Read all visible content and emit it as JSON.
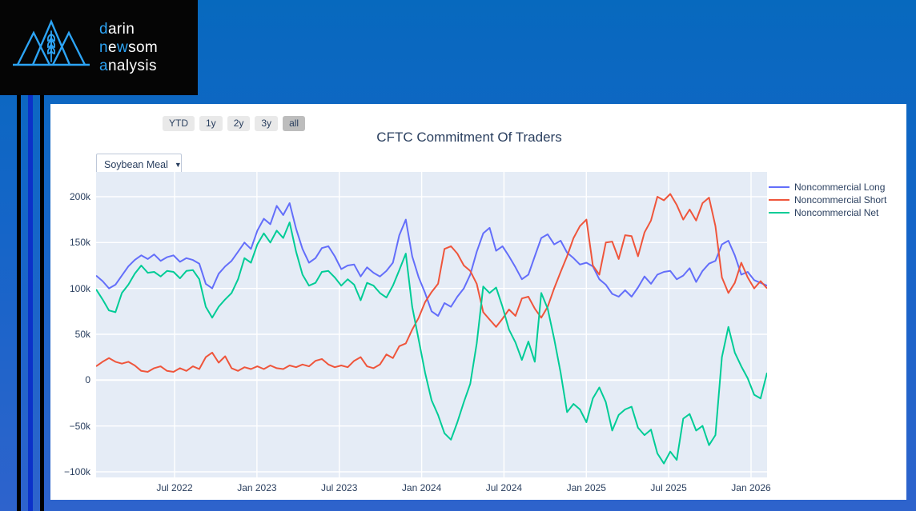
{
  "brand": {
    "accent_color": "#2CA4F5",
    "text_color": "#FFFFFF",
    "background": "#050505",
    "logo_icon": "mountains-wheat",
    "wordmark_lines": [
      {
        "segments": [
          {
            "text": "d",
            "accent": true
          },
          {
            "text": "arin",
            "accent": false
          }
        ]
      },
      {
        "segments": [
          {
            "text": "n",
            "accent": true
          },
          {
            "text": "e",
            "accent": false
          },
          {
            "text": "w",
            "accent": true
          },
          {
            "text": "som",
            "accent": false
          }
        ]
      },
      {
        "segments": [
          {
            "text": "a",
            "accent": true
          },
          {
            "text": "nalysis",
            "accent": false
          }
        ]
      }
    ]
  },
  "toolbar": {
    "range_buttons": [
      {
        "label": "YTD",
        "active": false
      },
      {
        "label": "1y",
        "active": false
      },
      {
        "label": "2y",
        "active": false
      },
      {
        "label": "3y",
        "active": false
      },
      {
        "label": "all",
        "active": true
      }
    ]
  },
  "chart": {
    "title": "CFTC Commitment Of Traders",
    "dropdown_value": "Soybean Meal",
    "dropdown_arrow": "▼"
  },
  "chart_data": {
    "type": "line",
    "title": "CFTC Commitment Of Traders",
    "commodity": "Soybean Meal",
    "x_start": "2022-01-15",
    "x_end": "2026-02-06",
    "x_interval": "biweekly",
    "x_ticks": [
      "Jul 2022",
      "Jan 2023",
      "Jul 2023",
      "Jan 2024",
      "Jul 2024",
      "Jan 2025",
      "Jul 2025",
      "Jan 2026"
    ],
    "y_ticks": [
      "200k",
      "150k",
      "100k",
      "50k",
      "0",
      "−50k",
      "−100k"
    ],
    "y_unit": "contracts, thousands",
    "ylim": [
      -106,
      226
    ],
    "grid": true,
    "plot_bg": "#E5ECF6",
    "grid_color": "#FFFFFF",
    "legend_position": "top-right-outside",
    "series": [
      {
        "name": "Noncommercial Long",
        "color": "#636EFA",
        "values": [
          114,
          108,
          100,
          104,
          114,
          124,
          131,
          136,
          132,
          137,
          130,
          134,
          136,
          129,
          133,
          131,
          127,
          105,
          100,
          116,
          124,
          130,
          140,
          150,
          143,
          163,
          176,
          170,
          190,
          180,
          193,
          165,
          143,
          128,
          133,
          144,
          146,
          135,
          121,
          125,
          126,
          113,
          123,
          117,
          113,
          119,
          128,
          158,
          175,
          135,
          112,
          95,
          75,
          70,
          84,
          80,
          91,
          100,
          115,
          140,
          160,
          166,
          141,
          146,
          135,
          123,
          110,
          115,
          135,
          155,
          159,
          148,
          152,
          139,
          133,
          126,
          128,
          124,
          110,
          104,
          94,
          91,
          98,
          91,
          101,
          113,
          105,
          115,
          118,
          119,
          110,
          114,
          122,
          107,
          119,
          127,
          130,
          148,
          152,
          136,
          115,
          118,
          109,
          106,
          103
        ]
      },
      {
        "name": "Noncommercial Short",
        "color": "#EF553B",
        "values": [
          15,
          20,
          24,
          20,
          18,
          20,
          16,
          10,
          9,
          13,
          15,
          10,
          9,
          13,
          10,
          15,
          12,
          25,
          30,
          19,
          26,
          13,
          10,
          14,
          12,
          15,
          12,
          16,
          13,
          12,
          16,
          14,
          17,
          15,
          21,
          23,
          17,
          14,
          16,
          14,
          21,
          25,
          15,
          13,
          17,
          28,
          24,
          37,
          40,
          55,
          68,
          85,
          96,
          105,
          143,
          146,
          138,
          125,
          119,
          105,
          74,
          66,
          58,
          67,
          77,
          70,
          89,
          91,
          78,
          68,
          80,
          100,
          118,
          135,
          155,
          168,
          175,
          125,
          115,
          150,
          151,
          132,
          158,
          157,
          135,
          161,
          174,
          200,
          196,
          203,
          191,
          175,
          186,
          174,
          193,
          199,
          168,
          112,
          95,
          106,
          128,
          112,
          100,
          108,
          100
        ]
      },
      {
        "name": "Noncommercial Net",
        "color": "#00CC96",
        "values": [
          99,
          88,
          76,
          74,
          95,
          104,
          116,
          125,
          117,
          118,
          113,
          119,
          118,
          111,
          119,
          120,
          110,
          80,
          68,
          80,
          88,
          95,
          110,
          133,
          128,
          148,
          160,
          150,
          163,
          155,
          172,
          140,
          115,
          103,
          106,
          118,
          119,
          112,
          103,
          110,
          104,
          87,
          106,
          103,
          95,
          90,
          103,
          120,
          138,
          80,
          44,
          8,
          -22,
          -38,
          -58,
          -65,
          -46,
          -24,
          -4,
          40,
          102,
          95,
          101,
          80,
          55,
          41,
          22,
          42,
          20,
          95,
          78,
          45,
          8,
          -35,
          -26,
          -32,
          -46,
          -20,
          -8,
          -24,
          -55,
          -38,
          -32,
          -29,
          -52,
          -60,
          -54,
          -80,
          -91,
          -78,
          -87,
          -42,
          -37,
          -55,
          -50,
          -71,
          -60,
          25,
          58,
          30,
          15,
          2,
          -16,
          -20,
          8
        ]
      }
    ]
  }
}
